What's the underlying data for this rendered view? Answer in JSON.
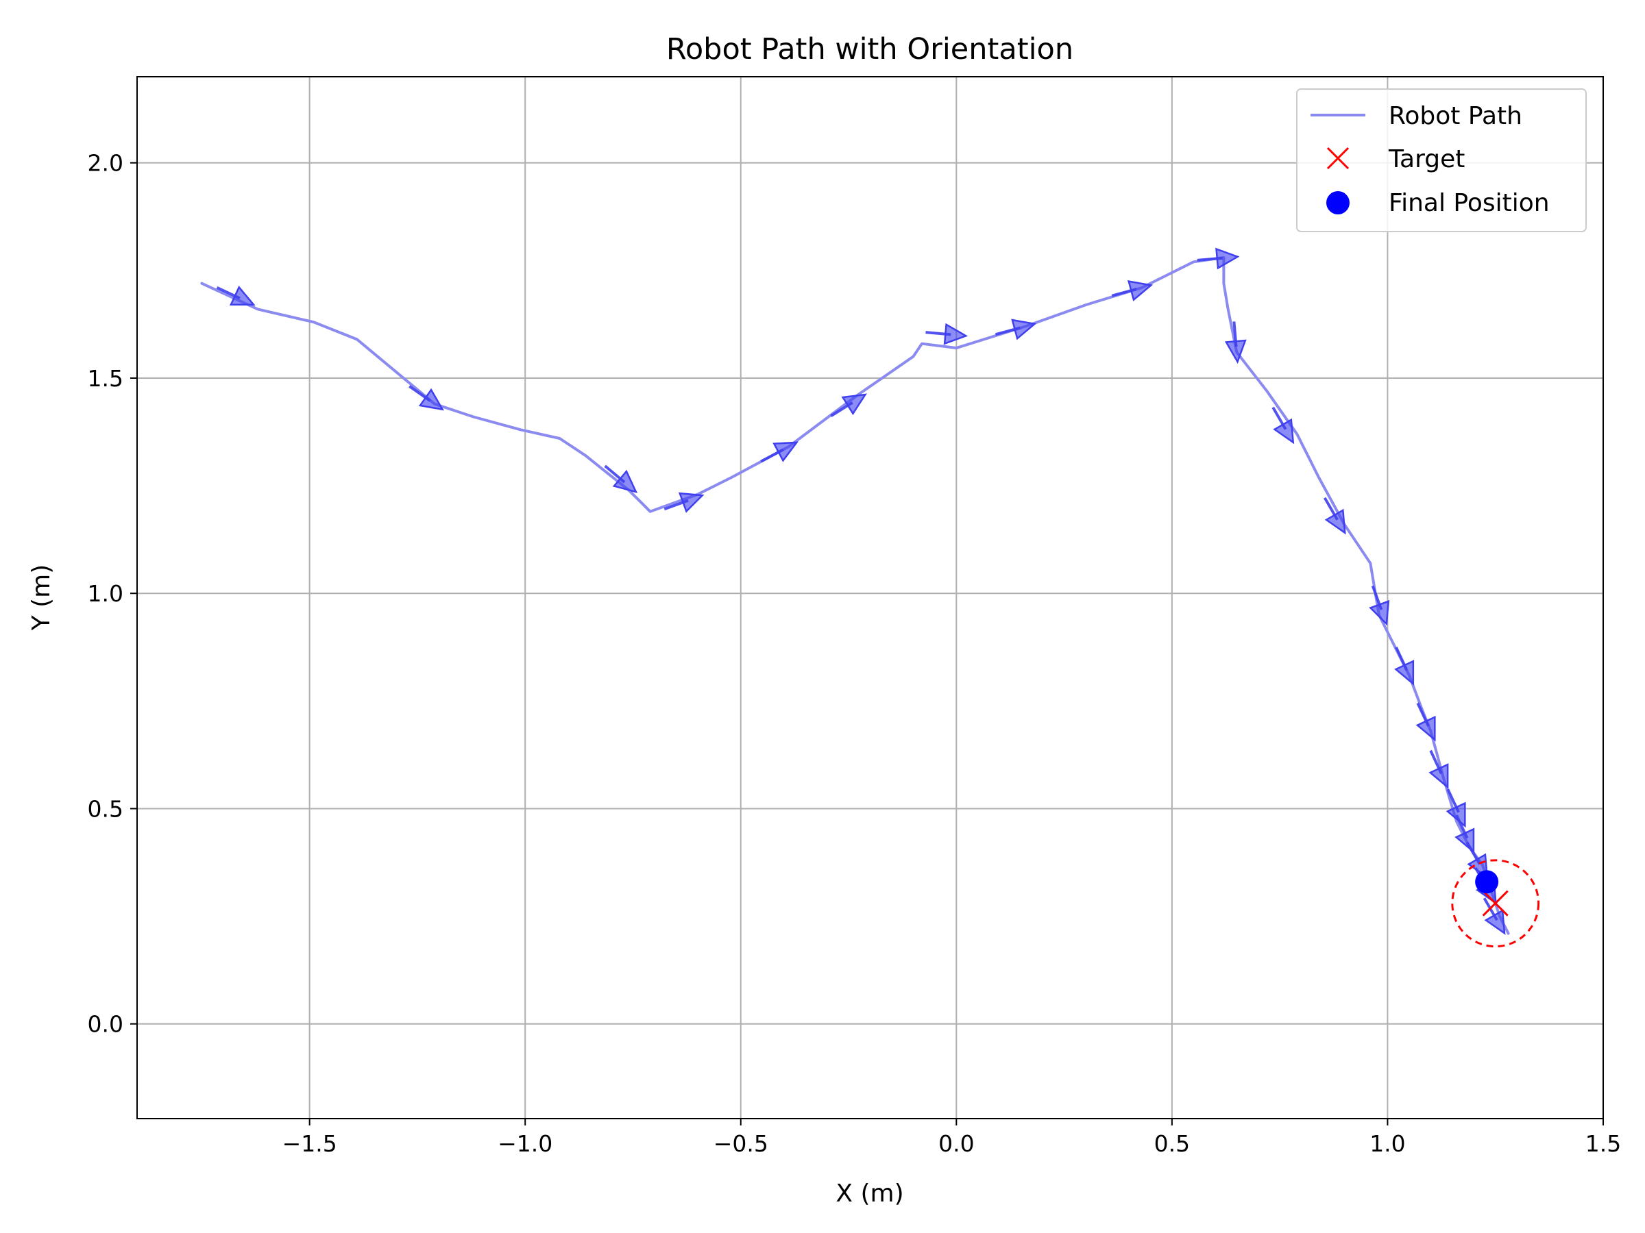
{
  "chart_data": {
    "type": "line",
    "title": "Robot Path with Orientation",
    "xlabel": "X (m)",
    "ylabel": "Y (m)",
    "xlim": [
      -1.9,
      1.5
    ],
    "ylim": [
      -0.22,
      2.2
    ],
    "xticks": [
      -1.5,
      -1.0,
      -0.5,
      0.0,
      0.5,
      1.0,
      1.5
    ],
    "xtick_labels": [
      "−1.5",
      "−1.0",
      "−0.5",
      "0.0",
      "0.5",
      "1.0",
      "1.5"
    ],
    "yticks": [
      0.0,
      0.5,
      1.0,
      1.5,
      2.0
    ],
    "ytick_labels": [
      "0.0",
      "0.5",
      "1.0",
      "1.5",
      "2.0"
    ],
    "grid": true,
    "legend_position": "top-right",
    "series": [
      {
        "name": "Robot Path",
        "color": "#8a8af0",
        "x": [
          -1.75,
          -1.62,
          -1.49,
          -1.39,
          -1.21,
          -1.12,
          -1.01,
          -0.92,
          -0.86,
          -0.76,
          -0.73,
          -0.71,
          -0.6,
          -0.52,
          -0.39,
          -0.23,
          -0.1,
          -0.08,
          0.0,
          0.16,
          0.3,
          0.43,
          0.55,
          0.62,
          0.62,
          0.63,
          0.65,
          0.72,
          0.79,
          0.84,
          0.9,
          0.96,
          0.98,
          1.01,
          1.05,
          1.08,
          1.1,
          1.13,
          1.16,
          1.19,
          1.22,
          1.24,
          1.26,
          1.28
        ],
        "y": [
          1.72,
          1.66,
          1.63,
          1.59,
          1.44,
          1.41,
          1.38,
          1.36,
          1.32,
          1.24,
          1.21,
          1.19,
          1.23,
          1.27,
          1.34,
          1.46,
          1.55,
          1.58,
          1.57,
          1.62,
          1.67,
          1.71,
          1.77,
          1.78,
          1.72,
          1.66,
          1.56,
          1.47,
          1.37,
          1.27,
          1.16,
          1.07,
          0.95,
          0.89,
          0.81,
          0.73,
          0.68,
          0.57,
          0.47,
          0.41,
          0.37,
          0.31,
          0.25,
          0.21
        ]
      }
    ],
    "orientation_arrows": {
      "color": "#3f3ff0",
      "points": [
        {
          "x": -1.65,
          "y": 1.68,
          "angle_deg": -25
        },
        {
          "x": -1.21,
          "y": 1.44,
          "angle_deg": -35
        },
        {
          "x": -0.76,
          "y": 1.25,
          "angle_deg": -40
        },
        {
          "x": -0.61,
          "y": 1.22,
          "angle_deg": 20
        },
        {
          "x": -0.39,
          "y": 1.34,
          "angle_deg": 28
        },
        {
          "x": -0.23,
          "y": 1.45,
          "angle_deg": 32
        },
        {
          "x": 0.0,
          "y": 1.6,
          "angle_deg": -5
        },
        {
          "x": 0.16,
          "y": 1.62,
          "angle_deg": 15
        },
        {
          "x": 0.43,
          "y": 1.71,
          "angle_deg": 15
        },
        {
          "x": 0.63,
          "y": 1.78,
          "angle_deg": 5
        },
        {
          "x": 0.65,
          "y": 1.56,
          "angle_deg": -85
        },
        {
          "x": 0.77,
          "y": 1.37,
          "angle_deg": -60
        },
        {
          "x": 0.89,
          "y": 1.16,
          "angle_deg": -60
        },
        {
          "x": 0.99,
          "y": 0.95,
          "angle_deg": -70
        },
        {
          "x": 1.05,
          "y": 0.81,
          "angle_deg": -65
        },
        {
          "x": 1.1,
          "y": 0.68,
          "angle_deg": -65
        },
        {
          "x": 1.13,
          "y": 0.57,
          "angle_deg": -65
        },
        {
          "x": 1.17,
          "y": 0.48,
          "angle_deg": -65
        },
        {
          "x": 1.19,
          "y": 0.42,
          "angle_deg": -65
        },
        {
          "x": 1.22,
          "y": 0.36,
          "angle_deg": -60
        },
        {
          "x": 1.24,
          "y": 0.3,
          "angle_deg": -60
        },
        {
          "x": 1.26,
          "y": 0.23,
          "angle_deg": -60
        }
      ]
    },
    "target": {
      "name": "Target",
      "x": 1.25,
      "y": 0.28,
      "color": "#ff0000",
      "radius": 0.1
    },
    "final_position": {
      "name": "Final Position",
      "x": 1.23,
      "y": 0.33,
      "color": "#0000ff"
    }
  }
}
